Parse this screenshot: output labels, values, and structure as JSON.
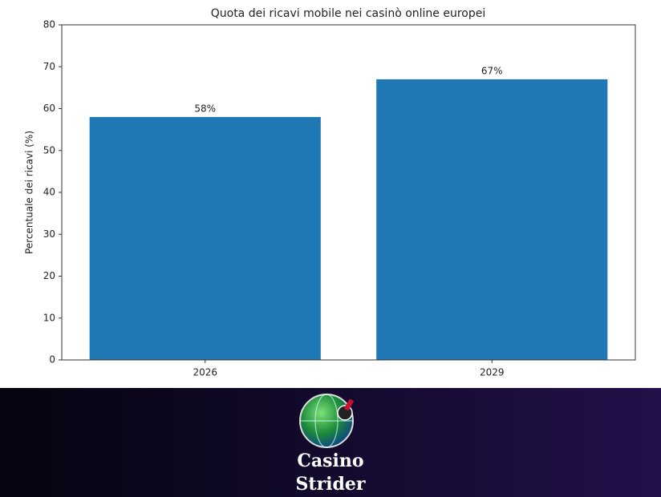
{
  "chart_data": {
    "type": "bar",
    "title": "Quota dei ricavi mobile nei casinò online europei",
    "ylabel": "Percentuale dei ricavi (%)",
    "categories": [
      "2026",
      "2029"
    ],
    "values": [
      58,
      67
    ],
    "value_labels": [
      "58%",
      "67%"
    ],
    "color": "#1f77b4",
    "ylim": [
      0,
      80
    ],
    "yticks": [
      0,
      10,
      20,
      30,
      40,
      50,
      60,
      70,
      80
    ],
    "grid": false
  },
  "footer": {
    "logo_text": [
      "Casino",
      "Strider"
    ]
  }
}
